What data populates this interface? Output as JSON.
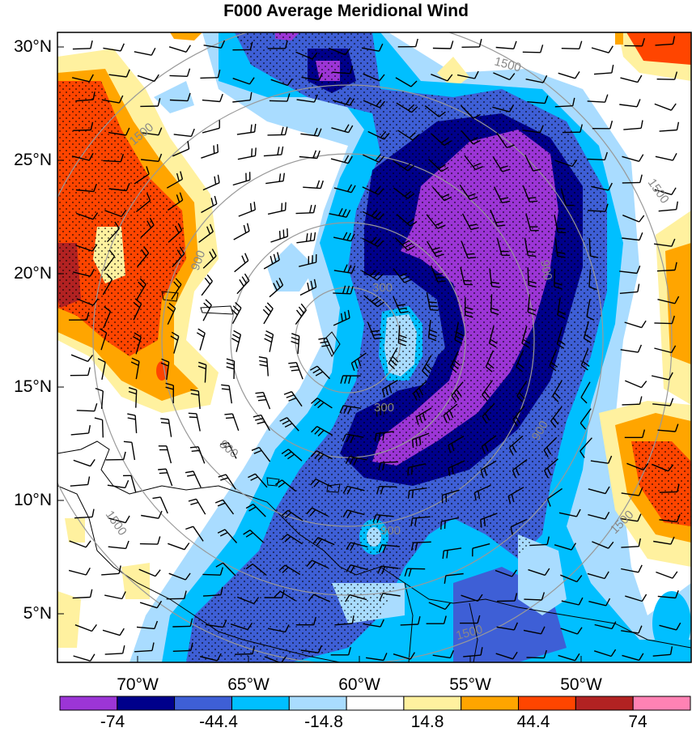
{
  "title": "F000 Average Meridional Wind",
  "lat_labels": [
    "30°N",
    "25°N",
    "20°N",
    "15°N",
    "10°N",
    "5°N"
  ],
  "lon_labels": [
    "70°W",
    "65°W",
    "60°W",
    "55°W",
    "50°W"
  ],
  "range_ring_labels": [
    "300",
    "300",
    "900",
    "900",
    "900",
    "900",
    "900",
    "1500",
    "1500",
    "1500",
    "1500",
    "1500",
    "1500"
  ],
  "colorbar": {
    "colors": [
      "#9c35d6",
      "#00008b",
      "#3e5fd6",
      "#00bfff",
      "#a9dcff",
      "#ffffff",
      "#fff19f",
      "#ffa500",
      "#ff4500",
      "#b22222",
      "#ff82b4"
    ],
    "labels": [
      "-74",
      "-44.4",
      "-14.8",
      "14.8",
      "44.4",
      "74"
    ]
  }
}
